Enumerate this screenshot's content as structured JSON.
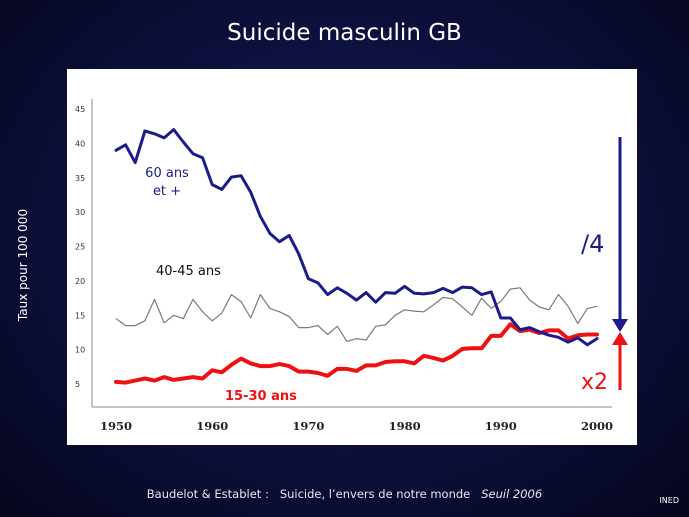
{
  "title": "Suicide masculin GB",
  "ylabel": "Taux pour 100 000",
  "source": {
    "authors": "Baudelot & Establet :",
    "work": "Suicide, l’envers de notre monde",
    "publisher": "Seuil 2006"
  },
  "logo_text": "INED",
  "annotations": {
    "old_ratio": "/4",
    "young_ratio": "x2"
  },
  "series_labels": {
    "old_line1": "60 ans",
    "old_line2": "et +",
    "mid": "40-45 ans",
    "young": "15-30 ans"
  },
  "colors": {
    "old": "#1b1c8a",
    "mid": "#7a7a7a",
    "young": "#ee1111",
    "arrow_down": "#1b1c8a",
    "arrow_up": "#ee1111"
  },
  "chart_data": {
    "type": "line",
    "title": "Suicide masculin GB",
    "xlabel": "",
    "ylabel": "Taux pour 100 000",
    "xlim": [
      1950,
      2000
    ],
    "ylim": [
      0,
      45
    ],
    "xticks": [
      1950,
      1960,
      1970,
      1980,
      1990,
      2000
    ],
    "yticks": [
      5,
      10,
      15,
      20,
      25,
      30,
      35,
      40,
      45
    ],
    "x": [
      1950,
      1951,
      1952,
      1953,
      1954,
      1955,
      1956,
      1957,
      1958,
      1959,
      1960,
      1961,
      1962,
      1963,
      1964,
      1965,
      1966,
      1967,
      1968,
      1969,
      1970,
      1971,
      1972,
      1973,
      1974,
      1975,
      1976,
      1977,
      1978,
      1979,
      1980,
      1981,
      1982,
      1983,
      1984,
      1985,
      1986,
      1987,
      1988,
      1989,
      1990,
      1991,
      1992,
      1993,
      1994,
      1995,
      1996,
      1997,
      1998,
      1999,
      2000
    ],
    "series": [
      {
        "name": "60 ans et +",
        "values": [
          39.0,
          39.8,
          37.2,
          41.8,
          41.4,
          40.8,
          42.0,
          40.2,
          38.5,
          37.9,
          34.0,
          33.3,
          35.1,
          35.3,
          32.9,
          29.4,
          26.9,
          25.7,
          26.6,
          23.9,
          20.3,
          19.7,
          18.0,
          19.0,
          18.2,
          17.2,
          18.3,
          16.9,
          18.3,
          18.2,
          19.2,
          18.2,
          18.1,
          18.3,
          18.9,
          18.3,
          19.1,
          19.0,
          18.0,
          18.4,
          14.6,
          14.6,
          12.9,
          13.2,
          12.6,
          12.1,
          11.8,
          11.1,
          11.7,
          10.7,
          11.6
        ]
      },
      {
        "name": "40-45 ans",
        "values": [
          14.5,
          13.5,
          13.5,
          14.2,
          17.3,
          13.9,
          15.0,
          14.5,
          17.3,
          15.5,
          14.2,
          15.3,
          18.0,
          17.0,
          14.6,
          18.0,
          16.0,
          15.5,
          14.8,
          13.2,
          13.2,
          13.5,
          12.2,
          13.4,
          11.2,
          11.6,
          11.4,
          13.4,
          13.6,
          15.0,
          15.8,
          15.6,
          15.5,
          16.5,
          17.6,
          17.4,
          16.2,
          15.0,
          17.5,
          16.0,
          17.0,
          18.8,
          19.0,
          17.2,
          16.2,
          15.8,
          18.0,
          16.3,
          13.8,
          16.0,
          16.3
        ]
      },
      {
        "name": "15-30 ans",
        "values": [
          5.3,
          5.2,
          5.5,
          5.8,
          5.5,
          6.0,
          5.6,
          5.8,
          6.0,
          5.8,
          7.0,
          6.7,
          7.8,
          8.7,
          8.0,
          7.6,
          7.6,
          7.9,
          7.6,
          6.8,
          6.8,
          6.6,
          6.2,
          7.2,
          7.2,
          6.9,
          7.7,
          7.7,
          8.2,
          8.3,
          8.3,
          8.0,
          9.1,
          8.8,
          8.4,
          9.1,
          10.1,
          10.2,
          10.2,
          12.0,
          12.0,
          13.7,
          12.7,
          12.9,
          12.4,
          12.8,
          12.8,
          11.6,
          12.1,
          12.2,
          12.2
        ]
      }
    ]
  }
}
